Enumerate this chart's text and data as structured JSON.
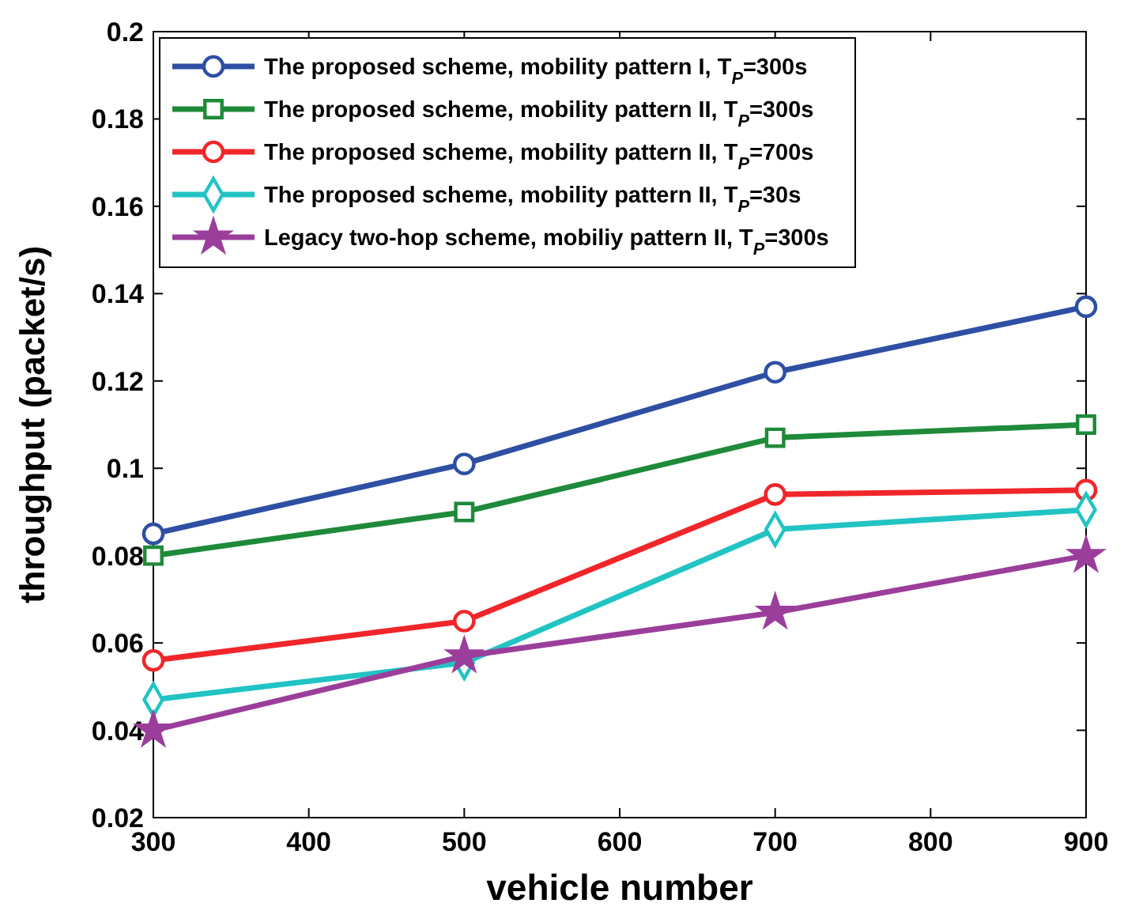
{
  "chart_data": {
    "type": "line",
    "xlabel": "vehicle number",
    "ylabel": "throughput (packet/s)",
    "x": [
      300,
      500,
      700,
      900
    ],
    "xlim": [
      300,
      900
    ],
    "xticks": [
      300,
      400,
      500,
      600,
      700,
      800,
      900
    ],
    "ylim": [
      0.02,
      0.2
    ],
    "yticks": [
      0.02,
      0.04,
      0.06,
      0.08,
      0.1,
      0.12,
      0.14,
      0.16,
      0.18,
      0.2
    ],
    "grid": false,
    "legend": "top left",
    "line_style": "solid",
    "series": [
      {
        "name": "The proposed scheme, mobility pattern I, T$_{P}$=300s",
        "color": "#2e4fa3",
        "marker": "circle",
        "values": [
          0.085,
          0.101,
          0.122,
          0.137
        ]
      },
      {
        "name": "The proposed scheme, mobility pattern II, T$_{P}$=300s",
        "color": "#1e8a3a",
        "marker": "square",
        "values": [
          0.08,
          0.09,
          0.107,
          0.11
        ]
      },
      {
        "name": "The proposed scheme, mobility pattern II, T$_{P}$=700s",
        "color": "#f0262a",
        "marker": "circle",
        "values": [
          0.056,
          0.065,
          0.094,
          0.095
        ]
      },
      {
        "name": "The proposed scheme, mobility pattern II, T$_{P}$=30s",
        "color": "#22c3c3",
        "marker": "diamond",
        "values": [
          0.047,
          0.0555,
          0.086,
          0.0905
        ]
      },
      {
        "name": "Legacy two-hop scheme, mobiliy pattern II, T$_{P}$=300s",
        "color": "#9b3e9b",
        "marker": "star",
        "values": [
          0.04,
          0.057,
          0.067,
          0.08
        ]
      }
    ]
  }
}
